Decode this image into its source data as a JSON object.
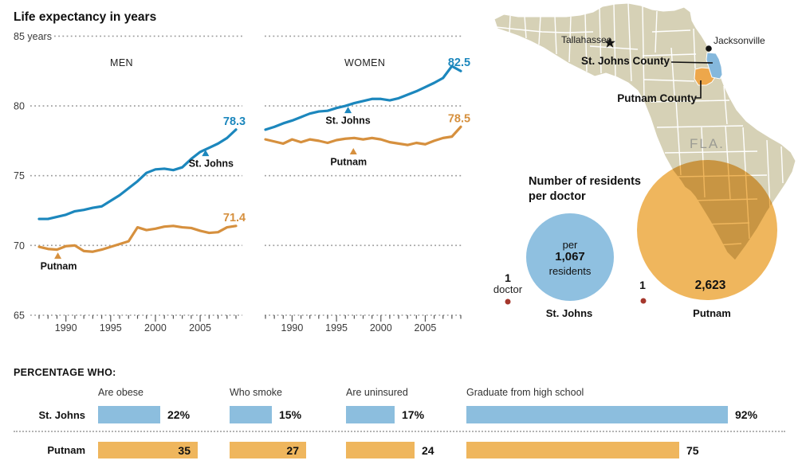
{
  "title": "Life expectancy in years",
  "chart_data": [
    {
      "id": "life-expectancy-men",
      "type": "line",
      "panel_label": "MEN",
      "x_range": [
        1987,
        2009
      ],
      "ylim": [
        65,
        85
      ],
      "y_ticks": [
        {
          "value": 85,
          "label": "85 years"
        },
        {
          "value": 80,
          "label": "80"
        },
        {
          "value": 75,
          "label": "75"
        },
        {
          "value": 70,
          "label": "70"
        },
        {
          "value": 65,
          "label": "65"
        }
      ],
      "x_ticks": [
        1990,
        1995,
        2000,
        2005
      ],
      "grid": "dotted",
      "series": [
        {
          "name": "St. Johns",
          "color": "#1c87bd",
          "end_label": "78.3",
          "values": [
            71.9,
            71.9,
            72.05,
            72.2,
            72.45,
            72.55,
            72.7,
            72.8,
            73.2,
            73.6,
            74.1,
            74.6,
            75.2,
            75.45,
            75.5,
            75.4,
            75.6,
            76.2,
            76.7,
            77.0,
            77.3,
            77.7,
            78.3
          ]
        },
        {
          "name": "Putnam",
          "color": "#d6903e",
          "end_label": "71.4",
          "values": [
            69.9,
            69.75,
            69.7,
            69.95,
            70.0,
            69.6,
            69.55,
            69.7,
            69.9,
            70.1,
            70.3,
            71.3,
            71.1,
            71.2,
            71.35,
            71.4,
            71.3,
            71.25,
            71.05,
            70.9,
            70.95,
            71.3,
            71.4
          ]
        }
      ],
      "annotations": [
        {
          "series": "St. Johns",
          "label": "St. Johns",
          "x": 2005.6,
          "y": 76.86,
          "label_dx": 7
        },
        {
          "series": "Putnam",
          "label": "Putnam",
          "x": 1989.1,
          "y": 69.5,
          "label_dx": 1
        }
      ]
    },
    {
      "id": "life-expectancy-women",
      "type": "line",
      "panel_label": "WOMEN",
      "x_range": [
        1987,
        2009
      ],
      "ylim": [
        65,
        85
      ],
      "y_ticks": [
        {
          "value": 85,
          "label": ""
        },
        {
          "value": 80,
          "label": ""
        },
        {
          "value": 75,
          "label": ""
        },
        {
          "value": 70,
          "label": ""
        },
        {
          "value": 65,
          "label": ""
        }
      ],
      "x_ticks": [
        1990,
        1995,
        2000,
        2005
      ],
      "grid": "dotted",
      "series": [
        {
          "name": "St. Johns",
          "color": "#1c87bd",
          "end_label": "82.5",
          "values": [
            78.3,
            78.5,
            78.75,
            78.95,
            79.2,
            79.45,
            79.6,
            79.65,
            79.85,
            80.0,
            80.2,
            80.35,
            80.5,
            80.5,
            80.4,
            80.55,
            80.8,
            81.05,
            81.35,
            81.65,
            82.0,
            82.85,
            82.5
          ]
        },
        {
          "name": "Putnam",
          "color": "#d6903e",
          "end_label": "78.5",
          "values": [
            77.6,
            77.45,
            77.3,
            77.6,
            77.4,
            77.6,
            77.5,
            77.35,
            77.55,
            77.65,
            77.7,
            77.6,
            77.7,
            77.6,
            77.4,
            77.3,
            77.2,
            77.35,
            77.25,
            77.5,
            77.7,
            77.8,
            78.5
          ]
        }
      ],
      "annotations": [
        {
          "series": "St. Johns",
          "label": "St. Johns",
          "x": 1996.3,
          "y": 79.94,
          "label_dx": 0
        },
        {
          "series": "Putnam",
          "label": "Putnam",
          "x": 1996.9,
          "y": 76.98,
          "label_dx": -6
        }
      ]
    },
    {
      "id": "residents-per-doctor",
      "type": "proportional-circles",
      "title_lines": [
        "Number of residents",
        "per doctor"
      ],
      "groups": [
        {
          "county": "St. Johns",
          "doctor_value": "1",
          "doctor_label": "doctor",
          "residents_label_top": "per",
          "residents_value": "1,067",
          "residents_label_bottom": "residents",
          "color": "#8fc0e0",
          "dot_color": "#a5372c"
        },
        {
          "county": "Putnam",
          "doctor_value": "1",
          "residents_value": "2,623",
          "color": "#efb65d",
          "dot_color": "#a5372c"
        }
      ]
    },
    {
      "id": "percentage-who",
      "type": "bar",
      "title": "PERCENTAGE WHO:",
      "categories": [
        "Are obese",
        "Who smoke",
        "Are uninsured",
        "Graduate from high school"
      ],
      "rows": [
        {
          "name": "St. Johns",
          "color": "#8cbede",
          "values": [
            22,
            15,
            17,
            92
          ],
          "value_labels": [
            "22%",
            "15%",
            "17%",
            "92%"
          ],
          "labels_inside": [
            false,
            false,
            false,
            false
          ]
        },
        {
          "name": "Putnam",
          "color": "#efb65d",
          "values": [
            35,
            27,
            24,
            75
          ],
          "value_labels": [
            "35",
            "27",
            "24",
            "75"
          ],
          "labels_inside": [
            true,
            true,
            false,
            false
          ]
        }
      ]
    }
  ],
  "map": {
    "state_abbr": "FLA.",
    "cities": [
      {
        "name": "Tallahassee",
        "marker": "star"
      },
      {
        "name": "Jacksonville",
        "marker": "dot"
      }
    ],
    "county_labels": [
      "St. Johns County",
      "Putnam County"
    ],
    "colors": {
      "land": "#d6d1b6",
      "stjohns_fill": "#85b8dc",
      "putnam_fill": "#eda74b"
    }
  }
}
